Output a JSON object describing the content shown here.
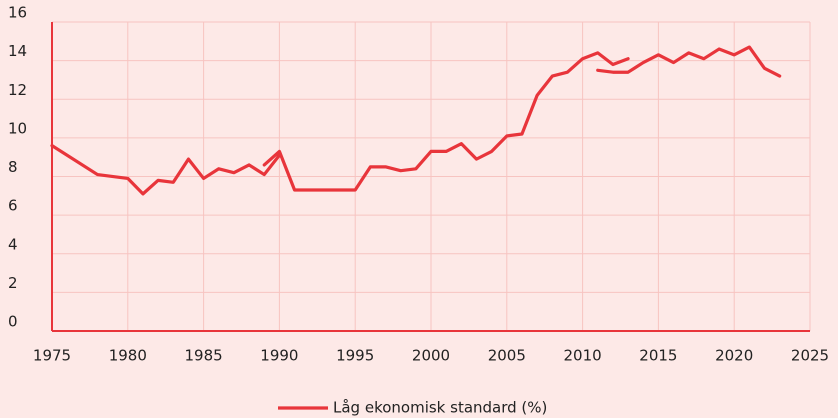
{
  "chart_data": {
    "type": "line",
    "x": [
      1975,
      1978,
      1980,
      1981,
      1982,
      1983,
      1984,
      1985,
      1986,
      1987,
      1988,
      1989,
      1990,
      null,
      1989,
      1990,
      1991,
      1992,
      1993,
      1994,
      1995,
      1996,
      1997,
      1998,
      1999,
      2000,
      2001,
      2002,
      2003,
      2004,
      2005,
      2006,
      2007,
      2008,
      2009,
      2010,
      2011,
      2012,
      2013,
      null,
      2011,
      2012,
      2013,
      2014,
      2015,
      2016,
      2017,
      2018,
      2019,
      2020,
      2021,
      2022,
      2023
    ],
    "series": [
      {
        "name": "Låg ekonomisk standard (%)",
        "color": "#e8353b",
        "values": [
          9.6,
          8.1,
          7.9,
          7.1,
          7.8,
          7.7,
          8.9,
          7.9,
          8.4,
          8.2,
          8.6,
          8.1,
          9.1,
          null,
          8.6,
          9.3,
          7.3,
          7.3,
          7.3,
          7.3,
          7.3,
          8.5,
          8.5,
          8.3,
          8.4,
          9.3,
          9.3,
          9.7,
          8.9,
          9.3,
          10.1,
          10.2,
          12.2,
          13.2,
          13.4,
          14.1,
          14.4,
          13.8,
          14.1,
          null,
          13.5,
          13.4,
          13.4,
          13.9,
          14.3,
          13.9,
          14.4,
          14.1,
          14.6,
          14.3,
          14.7,
          13.6,
          13.2
        ]
      }
    ],
    "xlim": [
      1975,
      2025
    ],
    "xticks": [
      1975,
      1980,
      1985,
      1990,
      1995,
      2000,
      2005,
      2010,
      2015,
      2020,
      2025
    ],
    "ylim": [
      0,
      16
    ],
    "yticks": [
      0,
      2,
      4,
      6,
      8,
      10,
      12,
      14,
      16
    ],
    "grid": true
  }
}
